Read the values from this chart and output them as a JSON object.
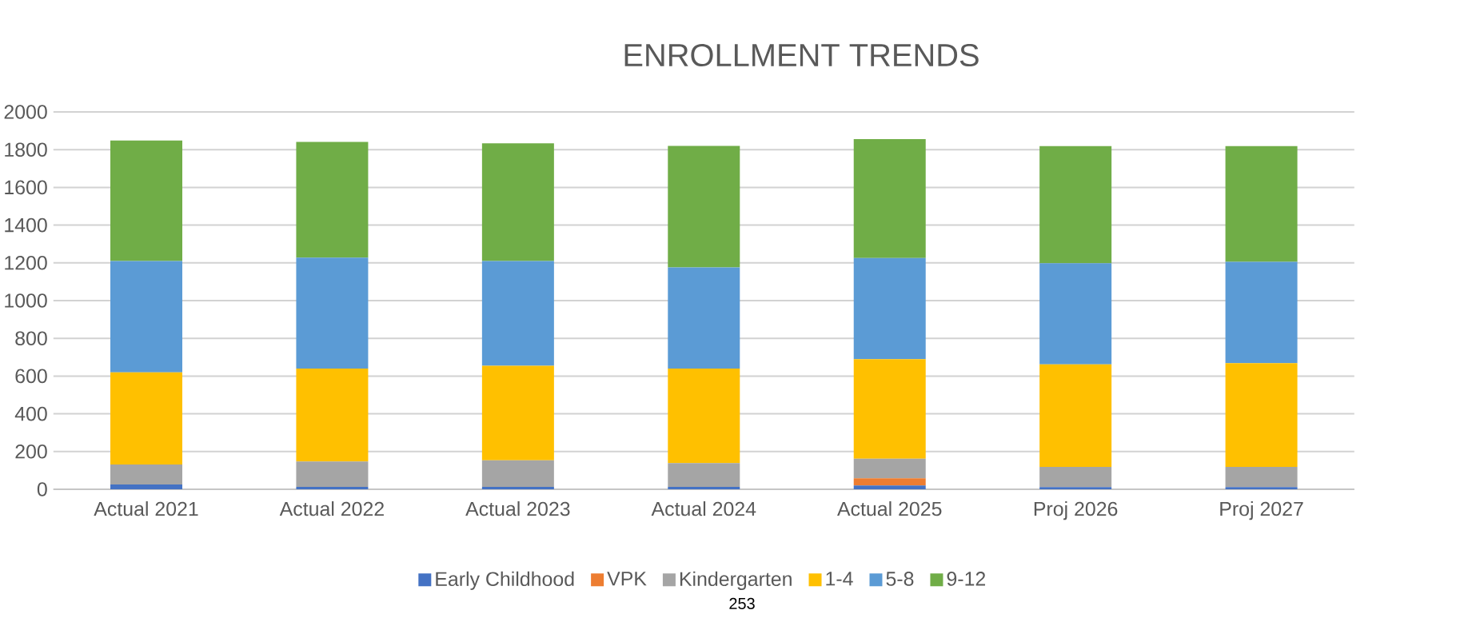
{
  "chart_data": {
    "type": "bar",
    "stacked": true,
    "title": "ENROLLMENT TRENDS",
    "categories": [
      "Actual 2021",
      "Actual 2022",
      "Actual 2023",
      "Actual 2024",
      "Actual 2025",
      "Proj 2026",
      "Proj 2027"
    ],
    "series": [
      {
        "name": "Early Childhood",
        "color": "#4472c4",
        "values": [
          25,
          13,
          13,
          13,
          20,
          12,
          12
        ]
      },
      {
        "name": "VPK",
        "color": "#ed7d31",
        "values": [
          0,
          0,
          0,
          0,
          38,
          0,
          0
        ]
      },
      {
        "name": "Kindergarten",
        "color": "#a5a5a5",
        "values": [
          106,
          134,
          141,
          126,
          104,
          107,
          107
        ]
      },
      {
        "name": "1-4",
        "color": "#ffc000",
        "values": [
          489,
          493,
          501,
          501,
          528,
          543,
          549
        ]
      },
      {
        "name": "5-8",
        "color": "#5b9bd5",
        "values": [
          590,
          588,
          555,
          536,
          536,
          536,
          538
        ]
      },
      {
        "name": "9-12",
        "color": "#70ad47",
        "values": [
          638,
          613,
          624,
          644,
          630,
          621,
          613
        ]
      }
    ],
    "ylim": [
      0,
      2000
    ],
    "yticks": [
      0,
      200,
      400,
      600,
      800,
      1000,
      1200,
      1400,
      1600,
      1800,
      2000
    ],
    "grid": "y",
    "legend": "bottom",
    "annotations": [
      "253"
    ]
  }
}
